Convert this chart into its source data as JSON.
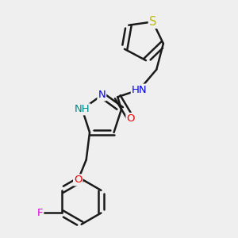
{
  "background_color": "#efefef",
  "bond_color": "#1a1a1a",
  "bond_width": 1.8,
  "atom_colors": {
    "N": "#0000ee",
    "O": "#ee0000",
    "S": "#bbbb00",
    "F": "#dd00dd",
    "NH": "#008888",
    "HN": "#0000ee"
  },
  "font_size": 9.5
}
